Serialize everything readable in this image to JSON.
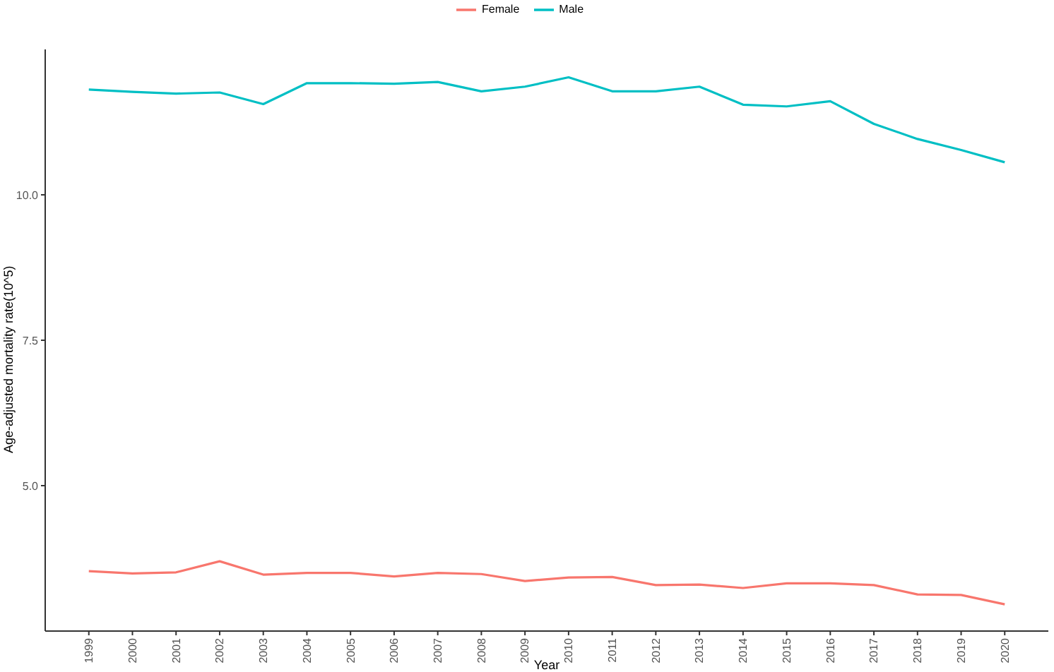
{
  "chart_data": {
    "type": "line",
    "xlabel": "Year",
    "ylabel": "Age-adjusted mortality rate(10^5)",
    "categories": [
      "1999",
      "2000",
      "2001",
      "2002",
      "2003",
      "2004",
      "2005",
      "2006",
      "2007",
      "2008",
      "2009",
      "2010",
      "2011",
      "2012",
      "2013",
      "2014",
      "2015",
      "2016",
      "2017",
      "2018",
      "2019",
      "2020"
    ],
    "series": [
      {
        "name": "Female",
        "color": "#f8766d",
        "values": [
          3.53,
          3.49,
          3.51,
          3.7,
          3.47,
          3.5,
          3.5,
          3.44,
          3.5,
          3.48,
          3.36,
          3.42,
          3.43,
          3.29,
          3.3,
          3.24,
          3.32,
          3.32,
          3.29,
          3.13,
          3.12,
          2.96
        ]
      },
      {
        "name": "Male",
        "color": "#00bfc4",
        "values": [
          11.81,
          11.77,
          11.74,
          11.76,
          11.56,
          11.92,
          11.92,
          11.91,
          11.94,
          11.78,
          11.86,
          12.02,
          11.78,
          11.78,
          11.86,
          11.55,
          11.52,
          11.61,
          11.22,
          10.96,
          10.77,
          10.56
        ]
      }
    ],
    "ylim": [
      2.5,
      12.5
    ],
    "yticks": [
      {
        "value": 5,
        "label": "5.0"
      },
      {
        "value": 7.5,
        "label": "7.5"
      },
      {
        "value": 10,
        "label": "10.0"
      }
    ],
    "grid": false,
    "legend": "top",
    "marker": "none",
    "line_style": "solid"
  }
}
